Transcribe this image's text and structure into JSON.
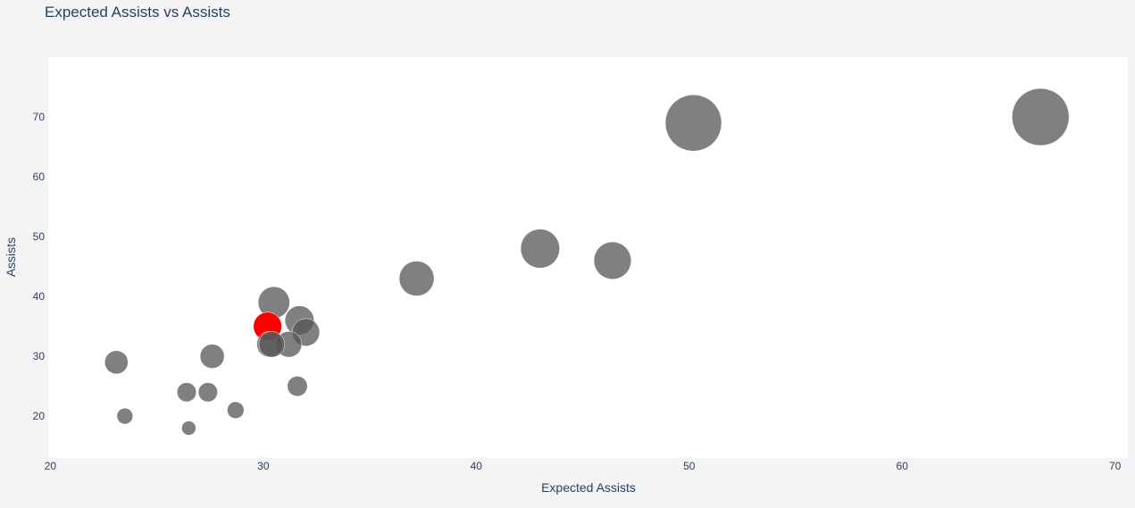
{
  "chart_data": {
    "type": "scatter",
    "title": "Expected Assists vs Assists",
    "xlabel": "Expected Assists",
    "ylabel": "Assists",
    "xlim": [
      19.9,
      70.6
    ],
    "ylim": [
      13,
      80
    ],
    "x_ticks": [
      20,
      30,
      40,
      50,
      60,
      70
    ],
    "y_ticks": [
      20,
      30,
      40,
      50,
      60,
      70
    ],
    "grid": false,
    "colors": {
      "default": "#555555",
      "highlight": "#ff0000",
      "plot_bg": "#ffffff",
      "paper_bg": "#f4f4f4"
    },
    "points": [
      {
        "x": 66.5,
        "y": 70,
        "highlight": false
      },
      {
        "x": 50.2,
        "y": 69,
        "highlight": false
      },
      {
        "x": 43.0,
        "y": 48,
        "highlight": false
      },
      {
        "x": 46.4,
        "y": 46,
        "highlight": false
      },
      {
        "x": 37.2,
        "y": 43,
        "highlight": false
      },
      {
        "x": 30.5,
        "y": 39,
        "highlight": false
      },
      {
        "x": 31.7,
        "y": 36,
        "highlight": false
      },
      {
        "x": 30.2,
        "y": 35,
        "highlight": true
      },
      {
        "x": 32.0,
        "y": 34,
        "highlight": false
      },
      {
        "x": 31.2,
        "y": 32,
        "highlight": false
      },
      {
        "x": 30.3,
        "y": 32,
        "highlight": false
      },
      {
        "x": 30.4,
        "y": 32,
        "highlight": false
      },
      {
        "x": 27.6,
        "y": 30,
        "highlight": false
      },
      {
        "x": 23.1,
        "y": 29,
        "highlight": false
      },
      {
        "x": 31.6,
        "y": 25,
        "highlight": false
      },
      {
        "x": 26.4,
        "y": 24,
        "highlight": false
      },
      {
        "x": 27.4,
        "y": 24,
        "highlight": false
      },
      {
        "x": 28.7,
        "y": 21,
        "highlight": false
      },
      {
        "x": 23.5,
        "y": 20,
        "highlight": false
      },
      {
        "x": 26.5,
        "y": 18,
        "highlight": false
      }
    ]
  }
}
